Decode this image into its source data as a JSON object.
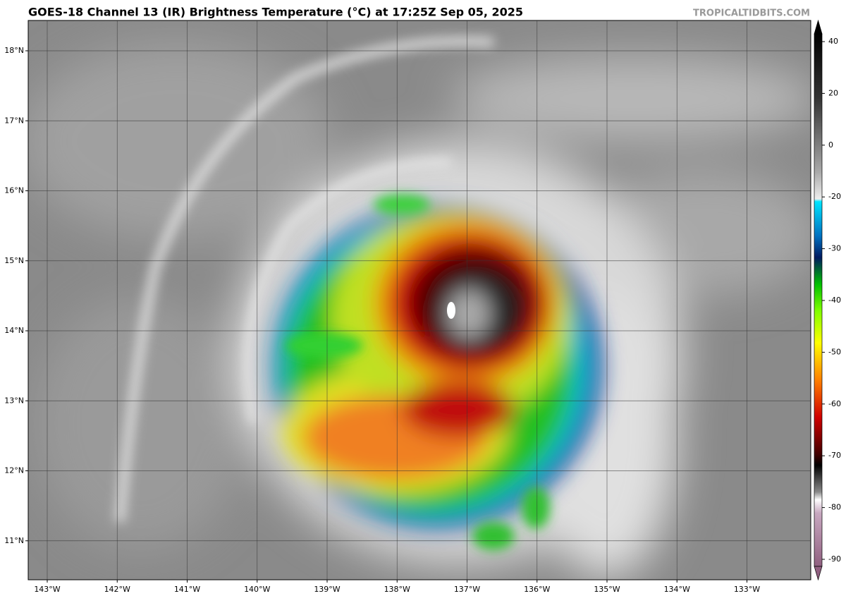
{
  "header": {
    "title": "GOES-18 Channel 13 (IR) Brightness Temperature (°C) at 17:25Z Sep 05, 2025",
    "credit": "TROPICALTIDBITS.COM"
  },
  "map": {
    "latitudes": [
      "18°N",
      "17°N",
      "16°N",
      "15°N",
      "14°N",
      "13°N",
      "12°N",
      "11°N"
    ],
    "longitudes": [
      "143°W",
      "142°W",
      "141°W",
      "140°W",
      "139°W",
      "138°W",
      "137°W",
      "136°W",
      "135°W",
      "134°W",
      "133°W"
    ]
  },
  "colorbar": {
    "ticks": [
      40,
      20,
      0,
      -20,
      -30,
      -40,
      -50,
      -60,
      -70,
      -80,
      -90
    ]
  }
}
